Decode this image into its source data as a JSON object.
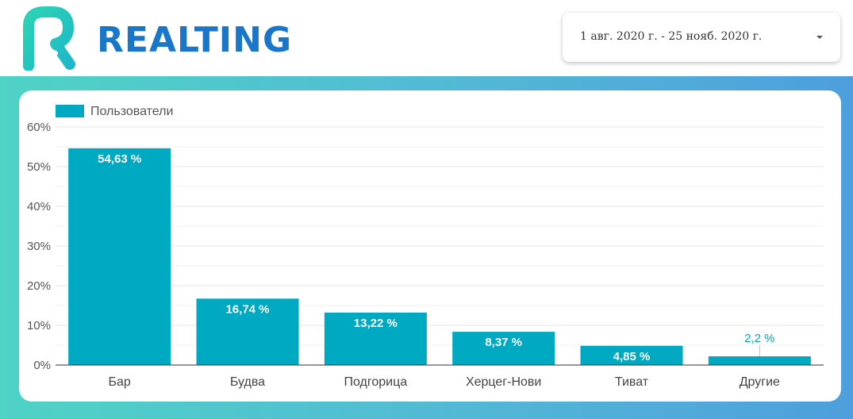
{
  "header": {
    "logo_text": "REALTING",
    "logo_color": "#1976c9",
    "date_range": "1 авг. 2020 г. - 25 нояб. 2020 г.",
    "dropdown_icon": "caret-down-icon"
  },
  "colors": {
    "bar": "#00a9c2",
    "grid": "#e6e6e6",
    "axis": "#333333",
    "outside_label": "#00a6bf"
  },
  "chart_data": {
    "type": "bar",
    "legend_position": "top-left",
    "grid": true,
    "categories": [
      "Бар",
      "Будва",
      "Подгорица",
      "Херцег-Нови",
      "Тиват",
      "Другие"
    ],
    "series": [
      {
        "name": "Пользователи",
        "values": [
          54.63,
          16.74,
          13.22,
          8.37,
          4.85,
          2.2
        ],
        "labels": [
          "54,63 %",
          "16,74 %",
          "13,22 %",
          "8,37 %",
          "4,85 %",
          "2,2 %"
        ]
      }
    ],
    "ylim": [
      0,
      60
    ],
    "yticks": [
      0,
      10,
      20,
      30,
      40,
      50,
      60
    ],
    "ytick_labels": [
      "0%",
      "10%",
      "20%",
      "30%",
      "40%",
      "50%",
      "60%"
    ]
  }
}
